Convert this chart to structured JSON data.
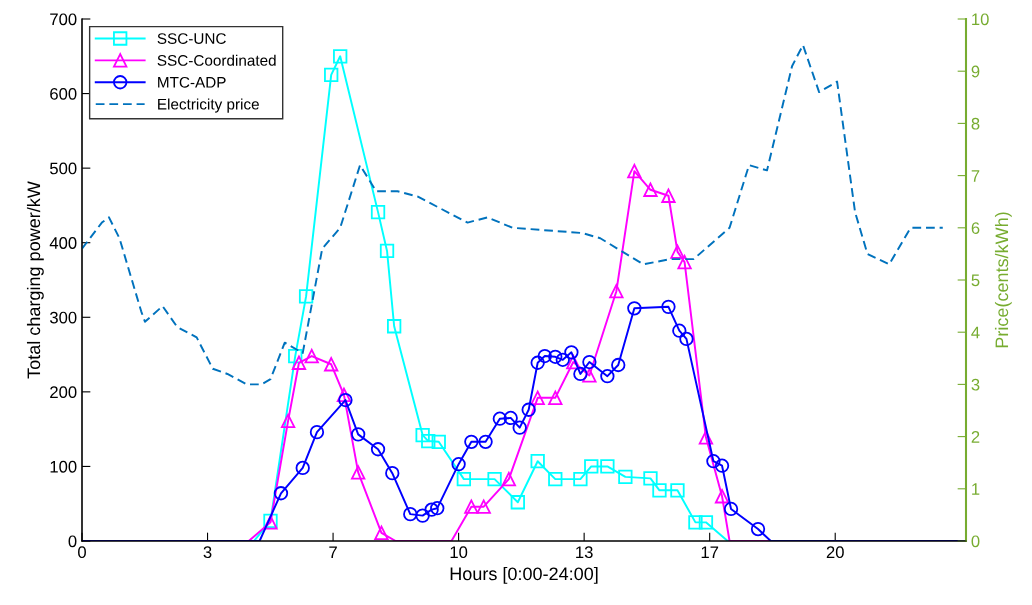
{
  "chart_data": {
    "type": "line",
    "xlabel": "Hours [0:00-24:00]",
    "ylabel": "Total charging power/kW",
    "y2label": "Price(cents/kWh)",
    "xlim": [
      0,
      23.59
    ],
    "xticks": [
      0,
      {
        "value": 3.35,
        "label": "3"
      },
      {
        "value": 6.7,
        "label": "7"
      },
      {
        "value": 10.05,
        "label": "10"
      },
      {
        "value": 13.4,
        "label": "13"
      },
      {
        "value": 16.75,
        "label": "17"
      },
      {
        "value": 20.1,
        "label": "20"
      }
    ],
    "ylim": [
      0,
      700
    ],
    "yticks": [
      0,
      100,
      200,
      300,
      400,
      500,
      600,
      700
    ],
    "y2lim": [
      0,
      10
    ],
    "y2ticks": [
      0,
      1,
      2,
      3,
      4,
      5,
      6,
      7,
      8,
      9,
      10
    ],
    "grid": false,
    "legend": "top left",
    "series": [
      {
        "name": "SSC-UNC",
        "color": "#00ffff",
        "marker": "square",
        "line_style": "solid",
        "x": [
          0,
          4.59,
          5.03,
          5.69,
          5.98,
          6.65,
          6.89,
          7.9,
          8.14,
          8.33,
          9.09,
          9.24,
          9.52,
          10.19,
          11.01,
          11.63,
          12.16,
          12.63,
          13.3,
          13.59,
          14.02,
          14.5,
          15.17,
          15.41,
          15.89,
          16.37,
          16.65,
          17.23,
          23.59
        ],
        "values": [
          0,
          0,
          27,
          248,
          328,
          625,
          650,
          441,
          389,
          288,
          142,
          134,
          133,
          83,
          83,
          52,
          107,
          83,
          83,
          100,
          100,
          86,
          84,
          68,
          68,
          25,
          25,
          0,
          0
        ]
      },
      {
        "name": "SSC-Coordinated",
        "color": "#ff00ff",
        "marker": "triangle",
        "line_style": "solid",
        "x": [
          0,
          4.45,
          5.03,
          5.5,
          5.79,
          6.13,
          6.65,
          6.99,
          7.37,
          7.99,
          8.37,
          9.86,
          10.39,
          10.72,
          11.39,
          12.16,
          12.63,
          13.11,
          13.54,
          14.26,
          14.74,
          15.17,
          15.65,
          15.89,
          16.08,
          16.65,
          17.08,
          17.28,
          23.59
        ],
        "values": [
          0,
          0,
          25,
          161,
          239,
          248,
          237,
          196,
          92,
          11,
          0,
          0,
          46,
          46,
          83,
          192,
          192,
          240,
          222,
          335,
          496,
          471,
          463,
          388,
          374,
          139,
          60,
          0,
          0
        ]
      },
      {
        "name": "MTC-ADP",
        "color": "#0000ff",
        "marker": "circle",
        "line_style": "solid",
        "x": [
          0,
          4.74,
          5.31,
          5.89,
          6.27,
          7.03,
          7.37,
          7.9,
          8.28,
          8.76,
          9.09,
          9.33,
          9.48,
          10.05,
          10.39,
          10.77,
          11.15,
          11.44,
          11.68,
          11.92,
          12.16,
          12.35,
          12.63,
          12.83,
          13.06,
          13.3,
          13.54,
          14.02,
          14.31,
          14.74,
          15.65,
          15.94,
          16.13,
          16.85,
          17.08,
          17.32,
          18.04,
          18.38,
          23.59
        ],
        "values": [
          0,
          0,
          64,
          98,
          146,
          189,
          143,
          123,
          91,
          36,
          34,
          42,
          44,
          103,
          133,
          133,
          164,
          165,
          152,
          176,
          239,
          248,
          247,
          243,
          253,
          224,
          240,
          221,
          236,
          312,
          314,
          282,
          271,
          107,
          101,
          43,
          16,
          0,
          0
        ]
      },
      {
        "name": "Electricity price",
        "color": "#0072bd",
        "marker": "none",
        "line_style": "dashed",
        "axis": "y2",
        "x": [
          0,
          0.53,
          0.72,
          1.0,
          1.58,
          1.68,
          2.15,
          2.54,
          3.06,
          3.49,
          3.88,
          4.4,
          4.79,
          5.03,
          5.41,
          5.89,
          6.41,
          6.89,
          7.42,
          7.85,
          8.42,
          8.95,
          10.29,
          10.82,
          11.49,
          13.35,
          13.83,
          14.98,
          15.7,
          16.32,
          17.28,
          17.8,
          18.28,
          18.95,
          19.24,
          19.67,
          20.15,
          20.63,
          20.96,
          21.54,
          22.11,
          22.97
        ],
        "values": [
          5.6,
          6.1,
          6.2,
          5.8,
          4.4,
          4.2,
          4.5,
          4.1,
          3.9,
          3.3,
          3.2,
          3.0,
          3.0,
          3.1,
          3.8,
          3.6,
          5.6,
          6.0,
          7.2,
          6.7,
          6.7,
          6.6,
          6.1,
          6.2,
          6.0,
          5.9,
          5.8,
          5.3,
          5.4,
          5.4,
          6.0,
          7.2,
          7.1,
          9.1,
          9.5,
          8.6,
          8.8,
          6.3,
          5.5,
          5.3,
          6.0,
          6.0
        ]
      }
    ]
  }
}
